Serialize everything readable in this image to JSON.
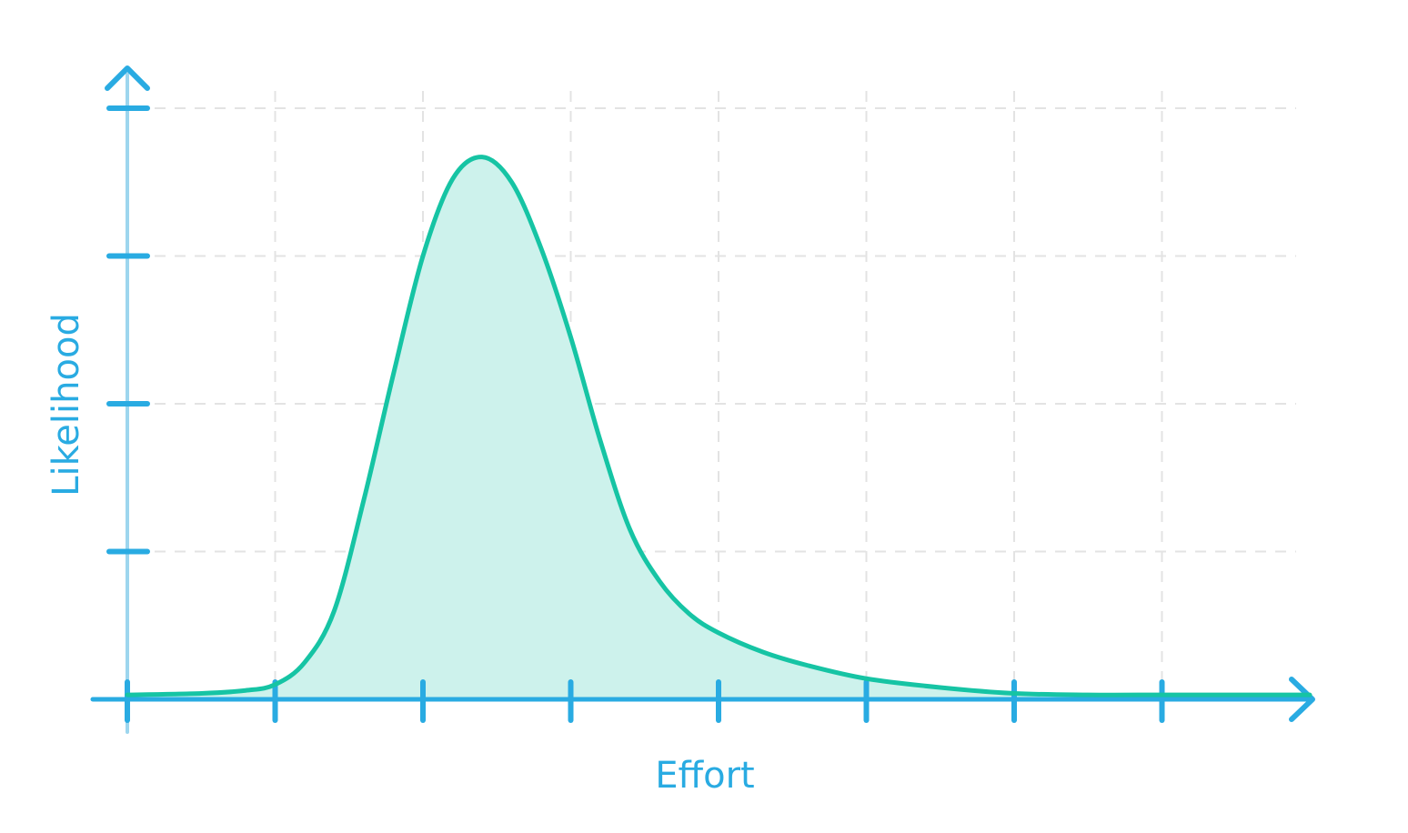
{
  "chart_data": {
    "type": "area",
    "title": "",
    "xlabel": "Effort",
    "ylabel": "Likelihood",
    "xlim": [
      0,
      8
    ],
    "ylim": [
      0,
      4
    ],
    "grid": true,
    "x_ticks": [
      0,
      1,
      2,
      3,
      4,
      5,
      6,
      7
    ],
    "y_ticks": [
      1,
      2,
      3,
      4
    ],
    "series": [
      {
        "x": [
          0,
          0.5,
          0.8,
          1.0,
          1.2,
          1.4,
          1.6,
          1.8,
          2.0,
          2.2,
          2.4,
          2.6,
          2.8,
          3.0,
          3.2,
          3.4,
          3.6,
          3.8,
          4.0,
          4.3,
          4.6,
          5.0,
          5.5,
          6.0,
          6.5,
          7.0,
          7.5,
          8.0
        ],
        "y": [
          0.03,
          0.04,
          0.06,
          0.1,
          0.25,
          0.6,
          1.35,
          2.2,
          3.0,
          3.52,
          3.67,
          3.5,
          3.05,
          2.45,
          1.75,
          1.15,
          0.8,
          0.58,
          0.45,
          0.32,
          0.23,
          0.14,
          0.08,
          0.04,
          0.03,
          0.03,
          0.03,
          0.03
        ]
      }
    ],
    "colors": {
      "axis": "#29abe2",
      "y_axis_line": "#9dd6ee",
      "curve": "#16c4a4",
      "fill": "#cdf2ec",
      "grid": "#e3e3e3"
    }
  }
}
